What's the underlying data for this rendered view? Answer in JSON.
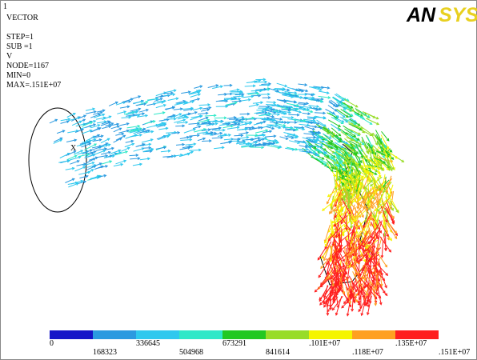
{
  "header": {
    "window": "1",
    "plot": "VECTOR",
    "lines": [
      "STEP=1",
      "SUB =1",
      "V",
      "NODE=1167",
      "MIN=0",
      "MAX=.151E+07"
    ]
  },
  "logo": {
    "dark": "AN",
    "light": "SYS"
  },
  "legend": {
    "colors": [
      "#1414c8",
      "#2b9ae0",
      "#2ec8ee",
      "#2ee8c8",
      "#22c822",
      "#98dc28",
      "#f5f500",
      "#ffa020",
      "#ff1e1e"
    ],
    "labels": [
      "0",
      "168323",
      "336645",
      "504968",
      "673291",
      "841614",
      ".101E+07",
      ".118E+07",
      ".135E+07",
      ".151E+07"
    ]
  }
}
